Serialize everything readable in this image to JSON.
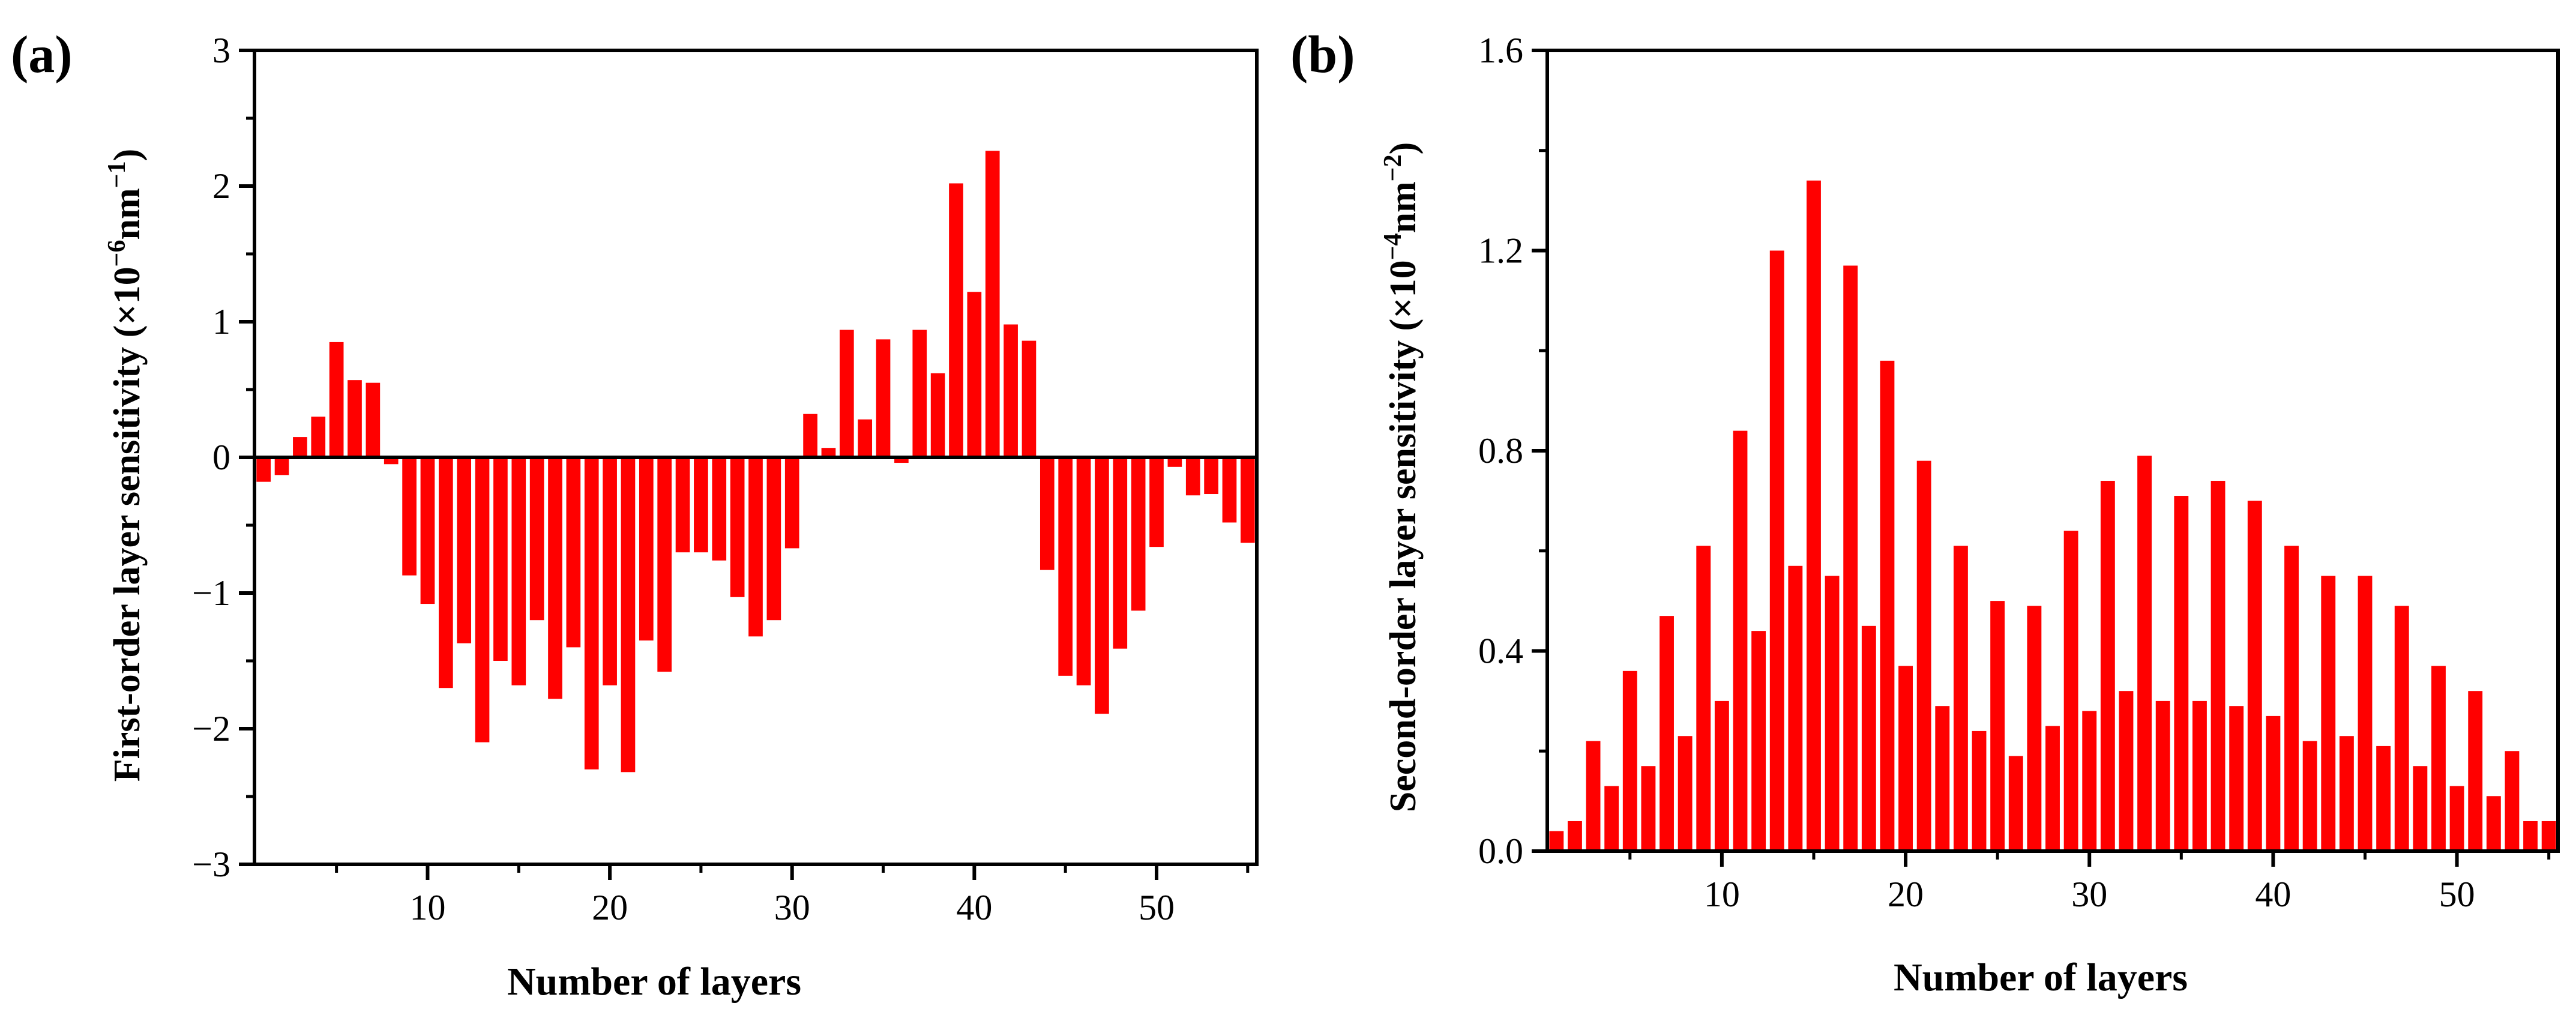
{
  "chart_data": [
    {
      "type": "bar",
      "panel_label": "(a)",
      "xlabel": "Number of layers",
      "ylabel_main": "First-order layer sensitivity (×10",
      "ylabel_exp": "−6",
      "ylabel_unit": "nm",
      "ylabel_unit_exp": "−1",
      "ylabel_close": ")",
      "ylim": [
        -3,
        3
      ],
      "xlim": [
        0.5,
        55.5
      ],
      "yticks": [
        -3,
        -2,
        -1,
        0,
        1,
        2,
        3
      ],
      "ytick_labels": [
        "−3",
        "−2",
        "−1",
        "0",
        "1",
        "2",
        "3"
      ],
      "xticks": [
        10,
        20,
        30,
        40,
        50
      ],
      "xtick_labels": [
        "10",
        "20",
        "30",
        "40",
        "50"
      ],
      "color": "#ff0000",
      "x": [
        1,
        2,
        3,
        4,
        5,
        6,
        7,
        8,
        9,
        10,
        11,
        12,
        13,
        14,
        15,
        16,
        17,
        18,
        19,
        20,
        21,
        22,
        23,
        24,
        25,
        26,
        27,
        28,
        29,
        30,
        31,
        32,
        33,
        34,
        35,
        36,
        37,
        38,
        39,
        40,
        41,
        42,
        43,
        44,
        45,
        46,
        47,
        48,
        49,
        50,
        51,
        52,
        53,
        54,
        55
      ],
      "values": [
        -0.18,
        -0.13,
        0.15,
        0.3,
        0.85,
        0.57,
        0.55,
        -0.05,
        -0.87,
        -1.08,
        -1.7,
        -1.37,
        -2.1,
        -1.5,
        -1.68,
        -1.2,
        -1.78,
        -1.4,
        -2.3,
        -1.68,
        -2.32,
        -1.35,
        -1.58,
        -0.7,
        -0.7,
        -0.76,
        -1.03,
        -1.32,
        -1.2,
        -0.67,
        0.32,
        0.07,
        0.94,
        0.28,
        0.87,
        -0.04,
        0.94,
        0.62,
        2.02,
        1.22,
        2.26,
        0.98,
        0.86,
        -0.83,
        -1.61,
        -1.68,
        -1.89,
        -1.41,
        -1.13,
        -0.66,
        -0.07,
        -0.28,
        -0.27,
        -0.48,
        -0.63
      ]
    },
    {
      "type": "bar",
      "panel_label": "(b)",
      "xlabel": "Number of layers",
      "ylabel_main": "Second-order layer sensitivity (×10",
      "ylabel_exp": "−4",
      "ylabel_unit": "nm",
      "ylabel_unit_exp": "−2",
      "ylabel_close": ")",
      "ylim": [
        0,
        1.6
      ],
      "xlim": [
        0.5,
        55.5
      ],
      "yticks": [
        0,
        0.4,
        0.8,
        1.2,
        1.6
      ],
      "ytick_labels": [
        "0.0",
        "0.4",
        "0.8",
        "1.2",
        "1.6"
      ],
      "xticks": [
        10,
        20,
        30,
        40,
        50
      ],
      "xtick_labels": [
        "10",
        "20",
        "30",
        "40",
        "50"
      ],
      "color": "#ff0000",
      "x": [
        1,
        2,
        3,
        4,
        5,
        6,
        7,
        8,
        9,
        10,
        11,
        12,
        13,
        14,
        15,
        16,
        17,
        18,
        19,
        20,
        21,
        22,
        23,
        24,
        25,
        26,
        27,
        28,
        29,
        30,
        31,
        32,
        33,
        34,
        35,
        36,
        37,
        38,
        39,
        40,
        41,
        42,
        43,
        44,
        45,
        46,
        47,
        48,
        49,
        50,
        51,
        52,
        53,
        54,
        55
      ],
      "values": [
        0.04,
        0.06,
        0.22,
        0.13,
        0.36,
        0.17,
        0.47,
        0.23,
        0.61,
        0.3,
        0.84,
        0.44,
        1.2,
        0.57,
        1.34,
        0.55,
        1.17,
        0.45,
        0.98,
        0.37,
        0.78,
        0.29,
        0.61,
        0.24,
        0.5,
        0.19,
        0.49,
        0.25,
        0.64,
        0.28,
        0.74,
        0.32,
        0.79,
        0.3,
        0.71,
        0.3,
        0.74,
        0.29,
        0.7,
        0.27,
        0.61,
        0.22,
        0.55,
        0.23,
        0.55,
        0.21,
        0.49,
        0.17,
        0.37,
        0.13,
        0.32,
        0.11,
        0.2,
        0.06,
        0.06
      ]
    }
  ]
}
